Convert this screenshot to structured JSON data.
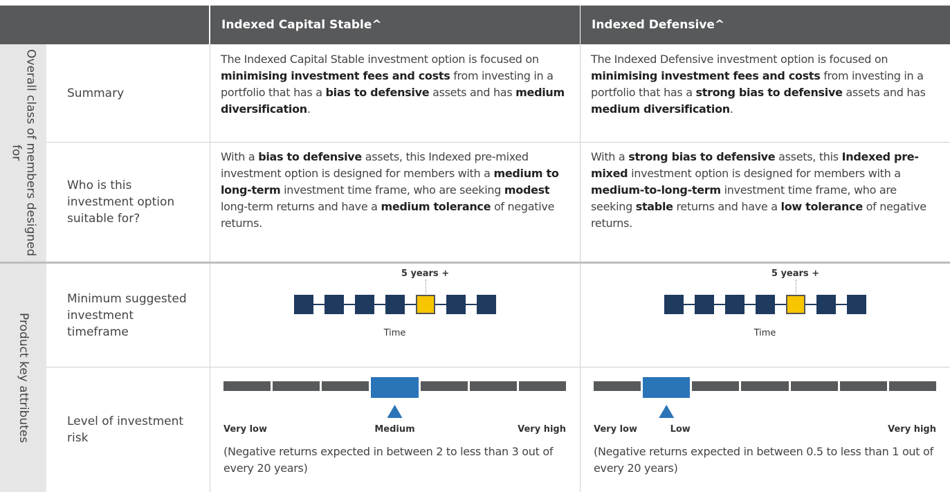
{
  "header": {
    "columns": [
      "Indexed Capital Stable^",
      "Indexed Defensive^"
    ]
  },
  "groups": [
    {
      "label": "Overall class of members designed for",
      "rows": [
        {
          "label": "Summary",
          "cells": [
            [
              {
                "text": "The Indexed Capital Stable investment option is focused on ",
                "bold": false
              },
              {
                "text": "minimising investment fees and costs",
                "bold": true
              },
              {
                "text": " from investing in a portfolio that has a ",
                "bold": false
              },
              {
                "text": "bias to defensive",
                "bold": true
              },
              {
                "text": " assets and has ",
                "bold": false
              },
              {
                "text": "medium diversification",
                "bold": true
              },
              {
                "text": ".",
                "bold": false
              }
            ],
            [
              {
                "text": "The Indexed Defensive investment option is focused on ",
                "bold": false
              },
              {
                "text": "minimising investment fees and costs",
                "bold": true
              },
              {
                "text": " from investing in a portfolio that has a ",
                "bold": false
              },
              {
                "text": "strong bias to defensive",
                "bold": true
              },
              {
                "text": " assets and has ",
                "bold": false
              },
              {
                "text": "medium diversification",
                "bold": true
              },
              {
                "text": ".",
                "bold": false
              }
            ]
          ]
        },
        {
          "label": "Who is this investment option suitable for?",
          "cells": [
            [
              {
                "text": "With a ",
                "bold": false
              },
              {
                "text": "bias to defensive",
                "bold": true
              },
              {
                "text": " assets, this Indexed pre-mixed investment option is designed for members with a ",
                "bold": false
              },
              {
                "text": "medium to long-term",
                "bold": true
              },
              {
                "text": " investment time frame, who are seeking ",
                "bold": false
              },
              {
                "text": "modest",
                "bold": true
              },
              {
                "text": " long-term returns and have a ",
                "bold": false
              },
              {
                "text": "medium tolerance",
                "bold": true
              },
              {
                "text": " of negative returns.",
                "bold": false
              }
            ],
            [
              {
                "text": "With a ",
                "bold": false
              },
              {
                "text": "strong bias to defensive",
                "bold": true
              },
              {
                "text": " assets, this ",
                "bold": false
              },
              {
                "text": "Indexed pre-mixed",
                "bold": true
              },
              {
                "text": " investment option is designed for members with a ",
                "bold": false
              },
              {
                "text": "medium-to-long-term",
                "bold": true
              },
              {
                "text": " investment time frame, who are seeking ",
                "bold": false
              },
              {
                "text": "stable",
                "bold": true
              },
              {
                "text": " returns and have a ",
                "bold": false
              },
              {
                "text": "low tolerance",
                "bold": true
              },
              {
                "text": " of negative returns.",
                "bold": false
              }
            ]
          ]
        }
      ]
    },
    {
      "label": "Product key attributes",
      "rows": [
        {
          "label": "Minimum suggested investment timeframe",
          "timeframes": [
            {
              "marker_label": "5 years +",
              "axis_label": "Time",
              "steps": 7,
              "marked": 4
            },
            {
              "marker_label": "5 years +",
              "axis_label": "Time",
              "steps": 7,
              "marked": 4
            }
          ]
        },
        {
          "label": "Level of investment risk",
          "risks": [
            {
              "segments": 7,
              "level": 3,
              "low_label": "Very low",
              "level_label": "Medium",
              "high_label": "Very high",
              "note": "(Negative returns expected in between 2 to less than 3 out of every 20 years)"
            },
            {
              "segments": 7,
              "level": 1,
              "low_label": "Very low",
              "level_label": "Low",
              "high_label": "Very high",
              "note": "(Negative returns expected in between 0.5 to less than 1 out of every 20 years)"
            }
          ]
        }
      ]
    }
  ]
}
